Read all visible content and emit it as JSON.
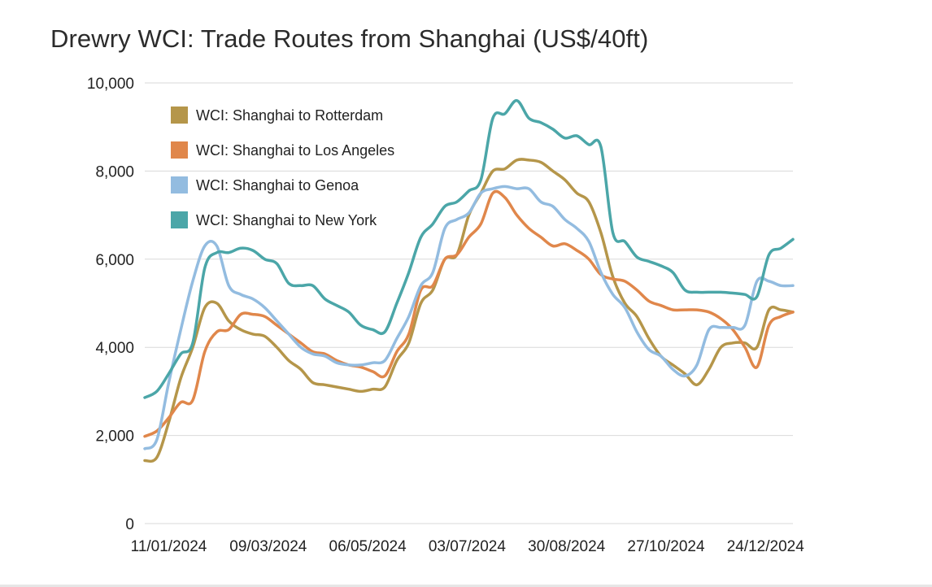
{
  "chart_data": {
    "type": "line",
    "title": "Drewry WCI: Trade Routes from Shanghai (US$/40ft)",
    "xlabel": "",
    "ylabel": "",
    "ylim": [
      0,
      10000
    ],
    "yticks": [
      "0",
      "2,000",
      "4,000",
      "6,000",
      "8,000",
      "10,000"
    ],
    "ytick_values": [
      0,
      2000,
      4000,
      6000,
      8000,
      10000
    ],
    "x_start": "2023-12-28",
    "x_end": "2025-01-09",
    "xtick_labels": [
      "11/01/2024",
      "09/03/2024",
      "06/05/2024",
      "03/07/2024",
      "30/08/2024",
      "27/10/2024",
      "24/12/2024"
    ],
    "xtick_dates": [
      "2024-01-11",
      "2024-03-09",
      "2024-05-06",
      "2024-07-03",
      "2024-08-30",
      "2024-10-27",
      "2024-12-24"
    ],
    "grid": true,
    "legend_position": "top-left",
    "x": [
      "2023-12-28",
      "2024-01-04",
      "2024-01-11",
      "2024-01-18",
      "2024-01-25",
      "2024-02-01",
      "2024-02-08",
      "2024-02-15",
      "2024-02-22",
      "2024-02-29",
      "2024-03-07",
      "2024-03-14",
      "2024-03-21",
      "2024-03-28",
      "2024-04-04",
      "2024-04-11",
      "2024-04-18",
      "2024-04-25",
      "2024-05-02",
      "2024-05-09",
      "2024-05-16",
      "2024-05-23",
      "2024-05-30",
      "2024-06-06",
      "2024-06-13",
      "2024-06-20",
      "2024-06-27",
      "2024-07-04",
      "2024-07-11",
      "2024-07-18",
      "2024-07-25",
      "2024-08-01",
      "2024-08-08",
      "2024-08-15",
      "2024-08-22",
      "2024-08-29",
      "2024-09-05",
      "2024-09-12",
      "2024-09-19",
      "2024-09-26",
      "2024-10-03",
      "2024-10-10",
      "2024-10-17",
      "2024-10-24",
      "2024-10-31",
      "2024-11-07",
      "2024-11-14",
      "2024-11-21",
      "2024-11-28",
      "2024-12-05",
      "2024-12-12",
      "2024-12-19",
      "2024-12-26",
      "2025-01-02",
      "2025-01-09"
    ],
    "series": [
      {
        "name": "WCI: Shanghai to Rotterdam",
        "color": "#b5964a",
        "values": [
          1430,
          1500,
          2300,
          3300,
          4000,
          4900,
          5000,
          4600,
          4400,
          4300,
          4250,
          4000,
          3700,
          3500,
          3200,
          3150,
          3100,
          3050,
          3000,
          3050,
          3100,
          3700,
          4100,
          5000,
          5300,
          6000,
          6100,
          7000,
          7500,
          8000,
          8050,
          8250,
          8250,
          8200,
          8000,
          7800,
          7500,
          7300,
          6600,
          5600,
          5000,
          4700,
          4200,
          3800,
          3600,
          3400,
          3150,
          3500,
          4000,
          4100,
          4100,
          4000,
          4850,
          4850,
          4800
        ]
      },
      {
        "name": "WCI: Shanghai to Los Angeles",
        "color": "#e0874b",
        "values": [
          1980,
          2100,
          2400,
          2750,
          2800,
          3900,
          4350,
          4400,
          4750,
          4750,
          4700,
          4500,
          4300,
          4100,
          3900,
          3850,
          3700,
          3600,
          3550,
          3450,
          3350,
          3900,
          4300,
          5300,
          5400,
          6000,
          6100,
          6500,
          6800,
          7500,
          7400,
          7000,
          6700,
          6500,
          6300,
          6350,
          6200,
          6000,
          5650,
          5550,
          5500,
          5300,
          5050,
          4950,
          4850,
          4850,
          4850,
          4800,
          4650,
          4400,
          4000,
          3550,
          4500,
          4700,
          4800
        ]
      },
      {
        "name": "WCI: Shanghai to Genoa",
        "color": "#93bce0",
        "values": [
          1700,
          1900,
          3200,
          4400,
          5500,
          6300,
          6300,
          5400,
          5200,
          5100,
          4900,
          4600,
          4300,
          4000,
          3850,
          3800,
          3650,
          3600,
          3600,
          3650,
          3700,
          4200,
          4700,
          5400,
          5700,
          6700,
          6900,
          7050,
          7500,
          7600,
          7650,
          7600,
          7600,
          7300,
          7200,
          6900,
          6700,
          6400,
          5700,
          5200,
          4900,
          4350,
          3950,
          3800,
          3500,
          3350,
          3600,
          4400,
          4450,
          4450,
          4500,
          5500,
          5500,
          5400,
          5400
        ]
      },
      {
        "name": "WCI: Shanghai to New York",
        "color": "#4ba6a8",
        "values": [
          2860,
          3000,
          3400,
          3850,
          4100,
          5800,
          6150,
          6150,
          6250,
          6200,
          6000,
          5900,
          5450,
          5400,
          5400,
          5100,
          4950,
          4800,
          4500,
          4400,
          4350,
          5000,
          5700,
          6500,
          6800,
          7200,
          7300,
          7550,
          7800,
          9200,
          9300,
          9600,
          9200,
          9100,
          8950,
          8750,
          8800,
          8600,
          8550,
          6600,
          6400,
          6050,
          5950,
          5850,
          5700,
          5300,
          5250,
          5250,
          5250,
          5230,
          5200,
          5150,
          6100,
          6250,
          6450
        ]
      }
    ]
  }
}
